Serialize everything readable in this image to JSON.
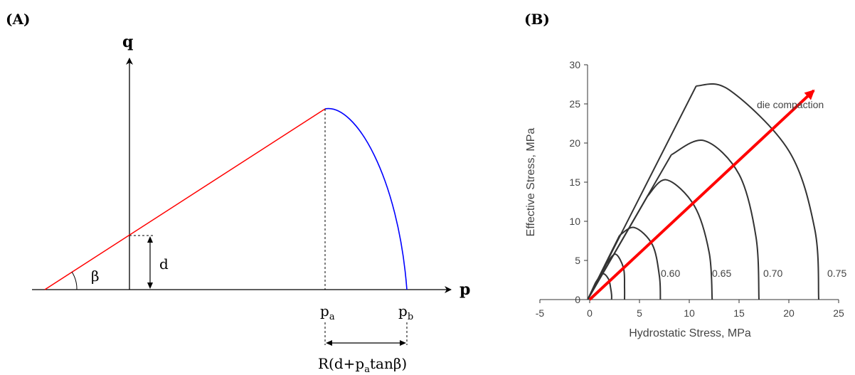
{
  "panel_a": {
    "label": "(A)",
    "q_axis_label": "q",
    "p_axis_label": "p",
    "beta_label": "β",
    "d_label": "d",
    "pa_label": {
      "base": "p",
      "sub": "a"
    },
    "pb_label": {
      "base": "p",
      "sub": "b"
    },
    "width_label": {
      "pre": "R(d+p",
      "sub": "a",
      "post": "tanβ)"
    },
    "colors": {
      "cone_line": "#ff0000",
      "cap_curve": "#0000ff",
      "axes": "#000000"
    }
  },
  "panel_b": {
    "label": "(B)",
    "xlabel": "Hydrostatic Stress, MPa",
    "ylabel": "Effective Stress, MPa",
    "arrow_label": "die compaction",
    "curve_labels": [
      "0.60",
      "0.65",
      "0.70",
      "0.75"
    ],
    "colors": {
      "curves": "#333333",
      "arrow": "#ff0000"
    }
  },
  "chart_data": {
    "type": "line",
    "xlim": [
      -5,
      25
    ],
    "ylim": [
      0,
      30
    ],
    "xticks": [
      "-5",
      "0",
      "5",
      "10",
      "15",
      "20",
      "25"
    ],
    "yticks": [
      "0",
      "5",
      "10",
      "15",
      "20",
      "25",
      "30"
    ],
    "series": [
      {
        "x": [
          -0.2,
          0.6,
          1.3,
          1.9,
          2.1,
          2.2,
          2.2
        ],
        "y": [
          0,
          2.2,
          3.3,
          2.6,
          1.5,
          0.6,
          0
        ]
      },
      {
        "x": [
          -0.2,
          1.7,
          2.6,
          3.4,
          3.5,
          3.5
        ],
        "y": [
          0,
          4.6,
          5.8,
          4.0,
          1.5,
          0
        ]
      },
      {
        "x": [
          -0.2,
          3.0,
          4.5,
          6.3,
          7.0,
          7.1
        ],
        "y": [
          0,
          8.2,
          9.2,
          7.0,
          3.0,
          0
        ]
      },
      {
        "x": [
          -0.2,
          5.8,
          7.7,
          10.5,
          12.0,
          12.3
        ],
        "y": [
          0,
          13.2,
          15.3,
          12.0,
          6.0,
          0
        ]
      },
      {
        "x": [
          -0.2,
          8.2,
          11.5,
          15.0,
          16.7,
          17.0
        ],
        "y": [
          0,
          18.5,
          20.3,
          16.0,
          8.0,
          0
        ]
      },
      {
        "x": [
          -0.2,
          10.7,
          14.0,
          20.0,
          22.6,
          23.0
        ],
        "y": [
          0,
          27.3,
          26.8,
          19.0,
          9.0,
          0
        ]
      }
    ],
    "arrow": {
      "from": [
        0,
        0
      ],
      "to": [
        22.5,
        26.7
      ]
    }
  }
}
